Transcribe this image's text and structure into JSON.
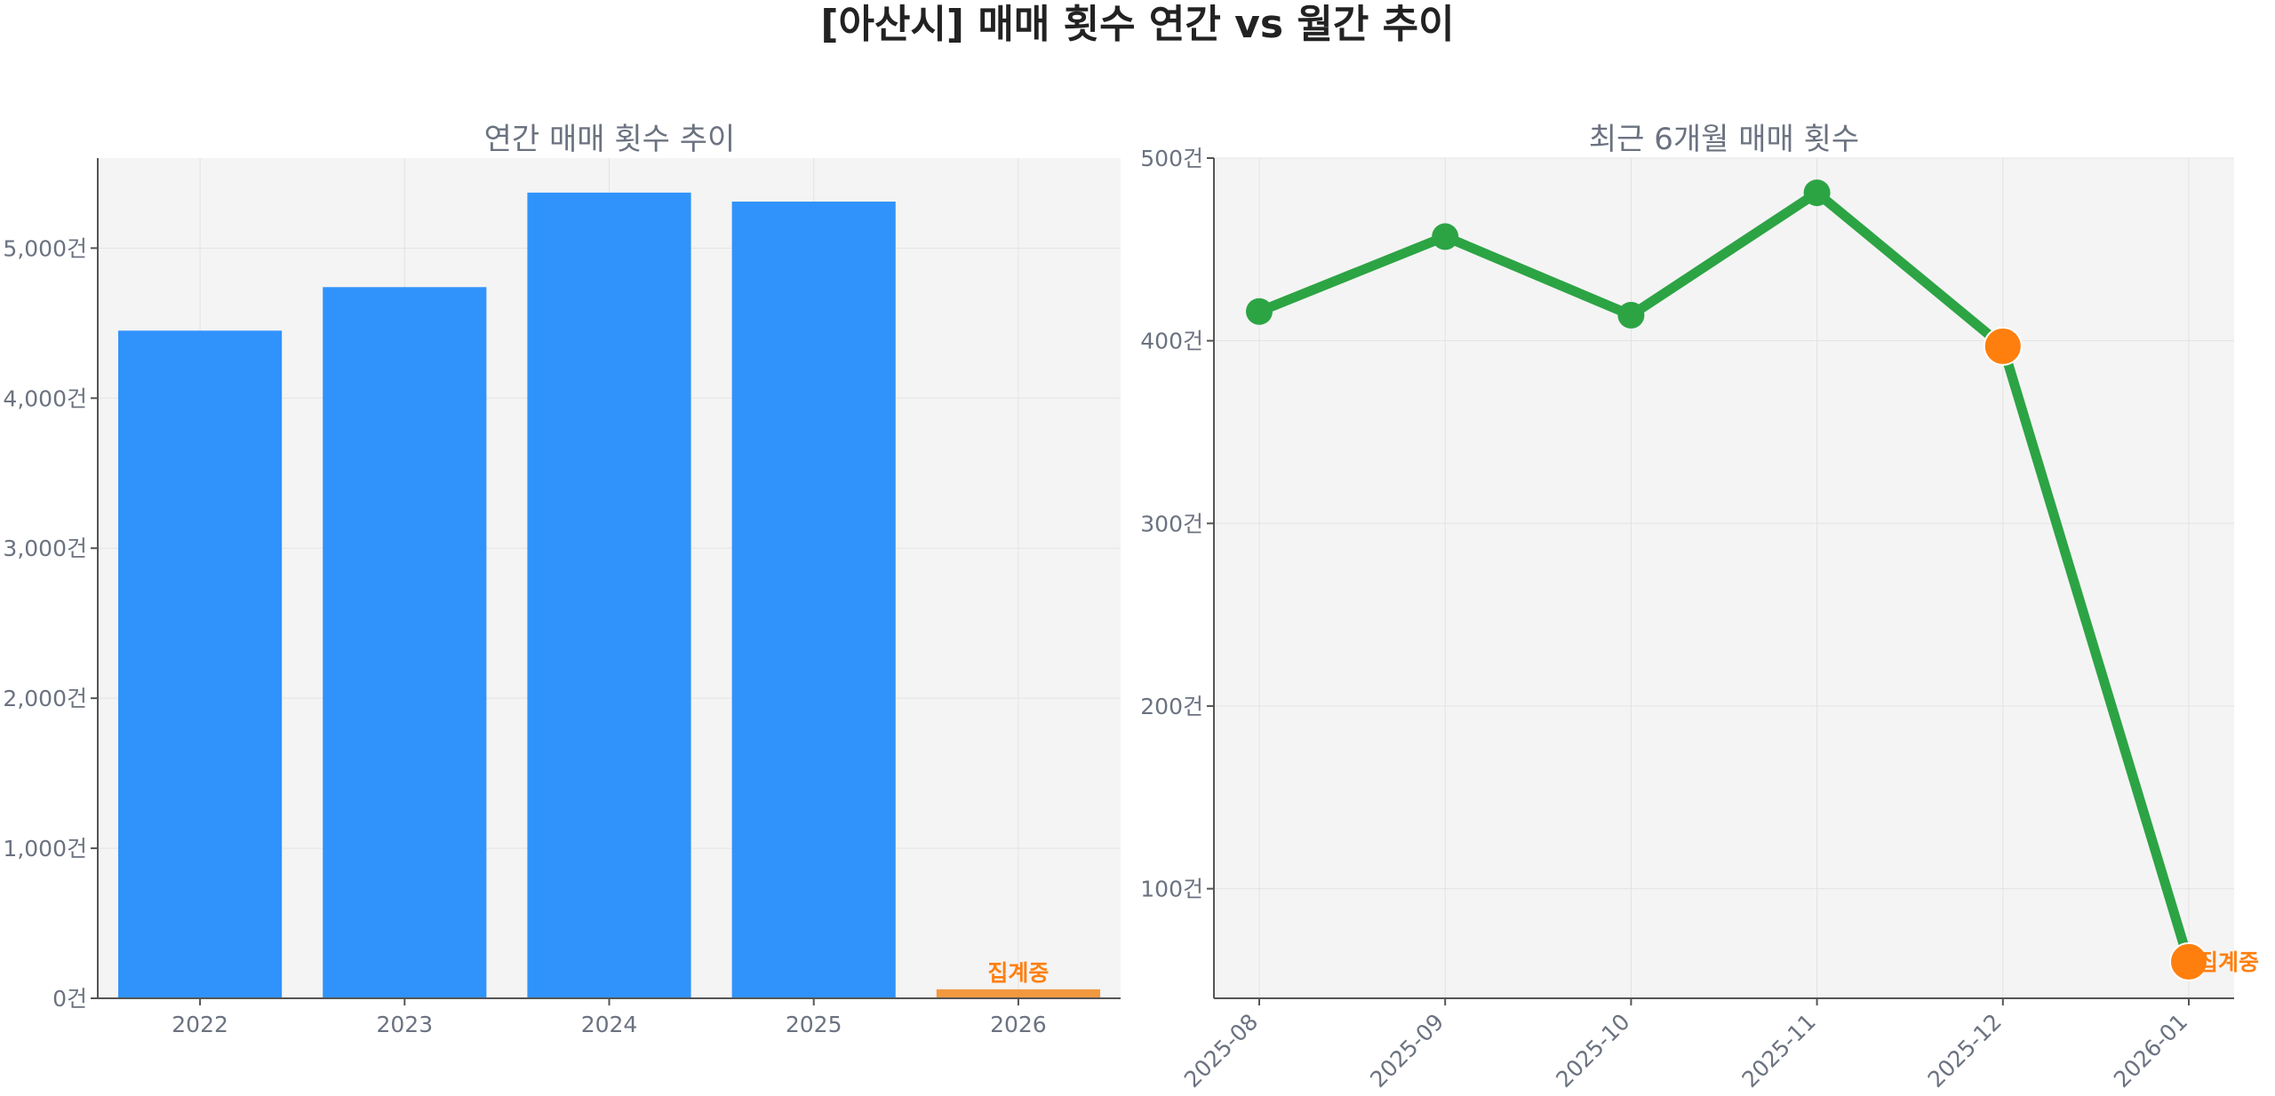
{
  "title": "[아산시] 매매 횟수 연간 vs 월간 추이",
  "colors": {
    "bar": "#3093fb",
    "partial": "#f28e2b",
    "line": "#2ca444",
    "highlight": "#ff7f0e"
  },
  "chart_data": [
    {
      "type": "bar",
      "title": "연간 매매 횟수 추이",
      "categories": [
        "2022",
        "2023",
        "2024",
        "2025",
        "2026"
      ],
      "values": [
        4450,
        4740,
        5370,
        5310,
        60
      ],
      "ylim": [
        0,
        5600
      ],
      "yticks": [
        0,
        1000,
        2000,
        3000,
        4000,
        5000
      ],
      "ytick_labels": [
        "0건",
        "1,000건",
        "2,000건",
        "3,000건",
        "4,000건",
        "5,000건"
      ],
      "annotation": {
        "category": "2026",
        "text": "집계중"
      },
      "grid": true
    },
    {
      "type": "line",
      "title": "최근 6개월 매매 횟수",
      "categories": [
        "2025-08",
        "2025-09",
        "2025-10",
        "2025-11",
        "2025-12",
        "2026-01"
      ],
      "values": [
        416,
        457,
        414,
        481,
        397,
        60
      ],
      "highlight": [
        "2025-12",
        "2026-01"
      ],
      "ylim": [
        40,
        500
      ],
      "yticks": [
        100,
        200,
        300,
        400,
        500
      ],
      "ytick_labels": [
        "100건",
        "200건",
        "300건",
        "400건",
        "500건"
      ],
      "annotation": {
        "category": "2026-01",
        "text": "집계중"
      },
      "grid": true
    }
  ]
}
